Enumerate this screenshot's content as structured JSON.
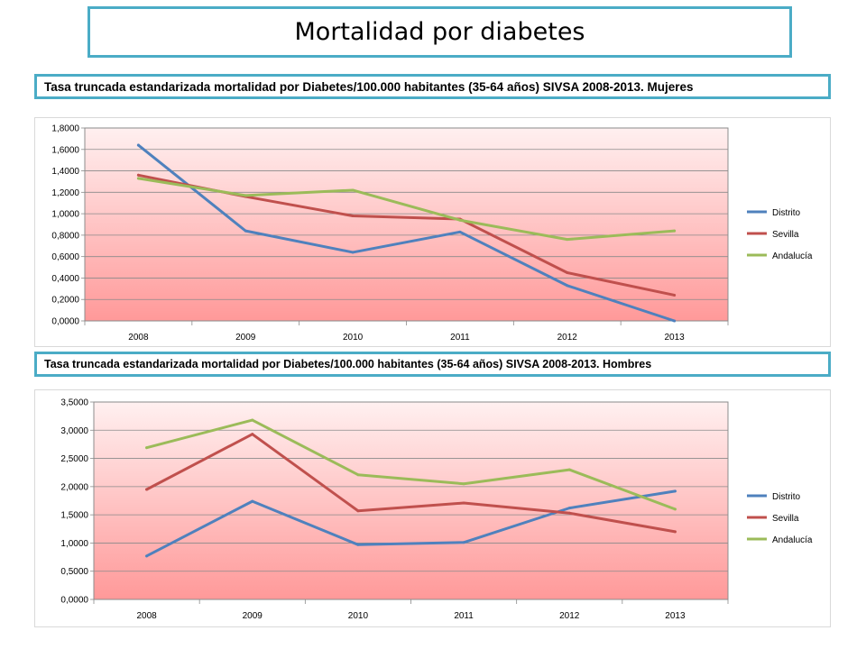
{
  "page": {
    "title": "Mortalidad por diabetes",
    "subtitle_women": "Tasa truncada estandarizada mortalidad por Diabetes/100.000 habitantes (35-64 años) SIVSA 2008-2013. Mujeres",
    "subtitle_men": "Tasa truncada estandarizada mortalidad por Diabetes/100.000 habitantes (35-64 años) SIVSA 2008-2013. Hombres"
  },
  "colors": {
    "Distrito": "#4f81bd",
    "Sevilla": "#c0504d",
    "Andalucía": "#9bbb59",
    "plot_top": "#fff0f0",
    "plot_bottom": "#ff9999",
    "frame": "#4bacc6"
  },
  "chart_data": [
    {
      "type": "line",
      "title": "Tasa truncada estandarizada mortalidad por Diabetes/100.000 habitantes (35-64 años) SIVSA 2008-2013. Mujeres",
      "categories": [
        "2008",
        "2009",
        "2010",
        "2011",
        "2012",
        "2013"
      ],
      "ylim": [
        0,
        1.8
      ],
      "yticks": [
        "0,0000",
        "0,2000",
        "0,4000",
        "0,6000",
        "0,8000",
        "1,0000",
        "1,2000",
        "1,4000",
        "1,6000",
        "1,8000"
      ],
      "grid": true,
      "legend": "right",
      "series": [
        {
          "name": "Distrito",
          "values": [
            1.64,
            0.84,
            0.64,
            0.83,
            0.33,
            0.0
          ]
        },
        {
          "name": "Sevilla",
          "values": [
            1.36,
            1.16,
            0.98,
            0.95,
            0.45,
            0.24
          ]
        },
        {
          "name": "Andalucía",
          "values": [
            1.33,
            1.17,
            1.22,
            0.94,
            0.76,
            0.84
          ]
        }
      ]
    },
    {
      "type": "line",
      "title": "Tasa truncada estandarizada mortalidad por Diabetes/100.000 habitantes (35-64 años) SIVSA 2008-2013. Hombres",
      "categories": [
        "2008",
        "2009",
        "2010",
        "2011",
        "2012",
        "2013"
      ],
      "ylim": [
        0,
        3.5
      ],
      "yticks": [
        "0,0000",
        "0,5000",
        "1,0000",
        "1,5000",
        "2,0000",
        "2,5000",
        "3,0000",
        "3,5000"
      ],
      "grid": true,
      "legend": "right",
      "series": [
        {
          "name": "Distrito",
          "values": [
            0.77,
            1.74,
            0.97,
            1.01,
            1.62,
            1.92
          ]
        },
        {
          "name": "Sevilla",
          "values": [
            1.95,
            2.93,
            1.57,
            1.71,
            1.53,
            1.2
          ]
        },
        {
          "name": "Andalucía",
          "values": [
            2.69,
            3.18,
            2.21,
            2.05,
            2.3,
            1.6
          ]
        }
      ]
    }
  ]
}
